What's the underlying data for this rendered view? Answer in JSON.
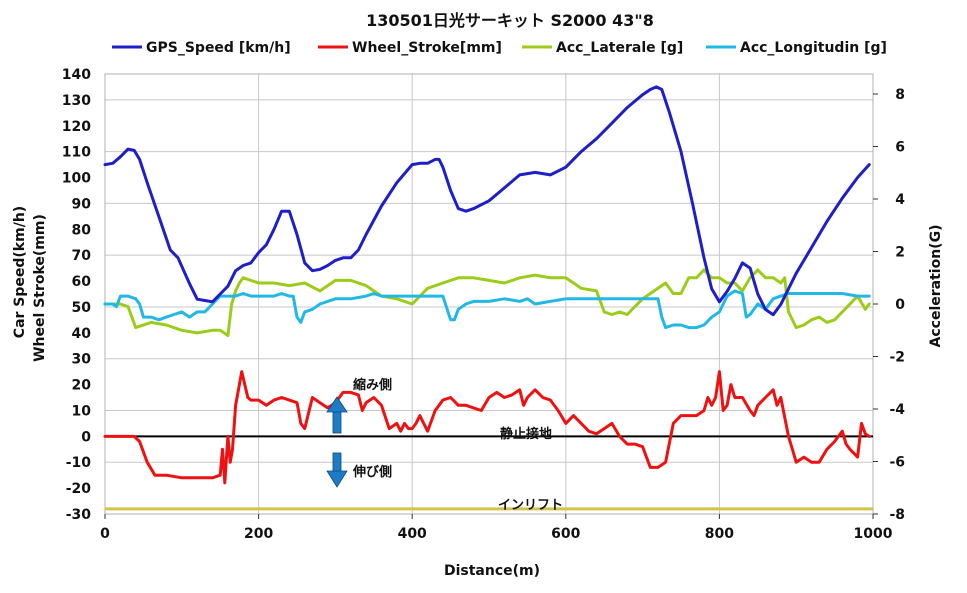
{
  "chart_data": {
    "type": "line",
    "title": "130501日光サーキット S2000 43\"8",
    "xlabel": "Distance(m)",
    "ylabel_left_line1": "Car Speed(km/h)",
    "ylabel_left_line2": "Wheel Stroke(mm)",
    "ylabel_right": "Acceleration(G)",
    "xlim": [
      0,
      1000
    ],
    "ylim_left": [
      -30,
      140
    ],
    "ylim_right": [
      -8,
      8.762
    ],
    "x_ticks": [
      "0",
      "200",
      "400",
      "600",
      "800",
      "1000"
    ],
    "y_ticks_left": [
      "-30",
      "-20",
      "-10",
      "0",
      "10",
      "20",
      "30",
      "40",
      "50",
      "60",
      "70",
      "80",
      "90",
      "100",
      "110",
      "120",
      "130",
      "140"
    ],
    "y_ticks_right": [
      "-8",
      "-6",
      "-4",
      "-2",
      "0",
      "2",
      "4",
      "6",
      "8"
    ],
    "grid": true,
    "legend_position": "top",
    "annotations": {
      "compress": "縮み側",
      "rebound": "伸び側",
      "static": "静止接地",
      "inlift": "インリフト"
    },
    "series": [
      {
        "name": "GPS_Speed [km/h]",
        "axis": "left",
        "color": "#1f1fc8",
        "x": [
          0,
          10,
          20,
          30,
          38,
          45,
          55,
          70,
          85,
          95,
          110,
          120,
          130,
          140,
          150,
          160,
          170,
          180,
          190,
          200,
          210,
          220,
          230,
          240,
          250,
          260,
          270,
          280,
          290,
          300,
          310,
          320,
          330,
          340,
          360,
          380,
          400,
          410,
          420,
          430,
          435,
          440,
          450,
          460,
          470,
          480,
          500,
          520,
          540,
          560,
          580,
          600,
          620,
          640,
          660,
          680,
          700,
          710,
          718,
          725,
          735,
          750,
          765,
          780,
          790,
          800,
          810,
          820,
          830,
          840,
          850,
          860,
          870,
          880,
          890,
          900,
          920,
          940,
          960,
          980,
          995
        ],
        "values": [
          105,
          105.5,
          108,
          111,
          110.5,
          107,
          98,
          85,
          72,
          69,
          59,
          53,
          52.5,
          52,
          55,
          58,
          64,
          66,
          67,
          71,
          74,
          80,
          87,
          87,
          78,
          67,
          64,
          64.5,
          66,
          68,
          69,
          69,
          72,
          78,
          89,
          98,
          105,
          105.5,
          105.5,
          107,
          107,
          104,
          95,
          88,
          87,
          88,
          91,
          96,
          101,
          102,
          101,
          104,
          110,
          115,
          121,
          127,
          132,
          134,
          135,
          134,
          125,
          110,
          90,
          69,
          57,
          52,
          56,
          61,
          67,
          65,
          55,
          49,
          47,
          51,
          57,
          63,
          73,
          83,
          92,
          100,
          105
        ]
      },
      {
        "name": "Wheel_Stroke[mm]",
        "axis": "left",
        "color": "#ee1111",
        "x": [
          0,
          10,
          20,
          30,
          38,
          45,
          55,
          65,
          80,
          100,
          120,
          130,
          140,
          150,
          153,
          156,
          160,
          163,
          166,
          170,
          175,
          178,
          182,
          186,
          190,
          200,
          210,
          220,
          230,
          240,
          250,
          252,
          255,
          260,
          270,
          280,
          290,
          300,
          310,
          320,
          330,
          335,
          340,
          350,
          360,
          370,
          380,
          385,
          390,
          395,
          400,
          405,
          410,
          415,
          420,
          430,
          440,
          450,
          460,
          470,
          480,
          490,
          500,
          510,
          520,
          530,
          540,
          545,
          550,
          560,
          570,
          580,
          590,
          600,
          610,
          620,
          630,
          640,
          650,
          660,
          670,
          680,
          690,
          700,
          710,
          720,
          730,
          740,
          750,
          760,
          770,
          780,
          785,
          790,
          795,
          800,
          805,
          810,
          815,
          820,
          830,
          840,
          845,
          850,
          860,
          870,
          875,
          880,
          890,
          895,
          900,
          910,
          920,
          930,
          940,
          950,
          955,
          960,
          965,
          970,
          980,
          985,
          990,
          995
        ],
        "values": [
          0,
          0,
          0,
          0,
          0,
          -2,
          -10,
          -15,
          -15,
          -16,
          -16,
          -16,
          -16,
          -15,
          -5,
          -18,
          0,
          -10,
          -5,
          12,
          20,
          25,
          20,
          15,
          14,
          14,
          12,
          14,
          15,
          14,
          13,
          10,
          5,
          3,
          15,
          13,
          11,
          13,
          17,
          17,
          16,
          10,
          13,
          15,
          12,
          3,
          5,
          2,
          5,
          3,
          3,
          5,
          8,
          5,
          2,
          10,
          14,
          15,
          12,
          12,
          11,
          10,
          15,
          17,
          15,
          16,
          18,
          12,
          15,
          18,
          15,
          14,
          10,
          5,
          8,
          5,
          2,
          1,
          3,
          5,
          0,
          -3,
          -3,
          -4,
          -12,
          -12,
          -10,
          5,
          8,
          8,
          8,
          10,
          15,
          12,
          15,
          25,
          10,
          12,
          20,
          15,
          15,
          10,
          8,
          12,
          15,
          18,
          12,
          15,
          0,
          -5,
          -10,
          -8,
          -10,
          -10,
          -5,
          -2,
          0,
          2,
          -3,
          -5,
          -8,
          5,
          1,
          0
        ]
      },
      {
        "name": "Acc_Laterale [g]",
        "axis": "right",
        "color": "#9ccc1a",
        "x": [
          0,
          10,
          20,
          30,
          40,
          60,
          80,
          100,
          120,
          140,
          150,
          160,
          165,
          170,
          175,
          180,
          200,
          220,
          240,
          260,
          280,
          300,
          320,
          340,
          360,
          380,
          400,
          420,
          440,
          460,
          480,
          500,
          520,
          540,
          560,
          580,
          600,
          620,
          640,
          650,
          660,
          670,
          680,
          700,
          710,
          720,
          730,
          740,
          750,
          760,
          770,
          780,
          790,
          800,
          810,
          820,
          830,
          840,
          850,
          860,
          870,
          880,
          885,
          890,
          900,
          910,
          920,
          930,
          940,
          950,
          960,
          970,
          980,
          990,
          995
        ],
        "values": [
          0,
          0,
          0,
          -0.1,
          -0.9,
          -0.7,
          -0.8,
          -1.0,
          -1.1,
          -1.0,
          -1.0,
          -1.2,
          0,
          0.5,
          0.8,
          1.0,
          0.8,
          0.8,
          0.7,
          0.8,
          0.5,
          0.9,
          0.9,
          0.7,
          0.3,
          0.2,
          0,
          0.6,
          0.8,
          1.0,
          1.0,
          0.9,
          0.8,
          1.0,
          1.1,
          1.0,
          1.0,
          0.6,
          0.5,
          -0.3,
          -0.4,
          -0.3,
          -0.4,
          0.2,
          0.4,
          0.6,
          0.8,
          0.4,
          0.4,
          1.0,
          1.0,
          1.3,
          1.0,
          1.0,
          0.8,
          0.8,
          0.5,
          1.0,
          1.3,
          1.0,
          1.0,
          0.8,
          1.0,
          -0.3,
          -0.9,
          -0.8,
          -0.6,
          -0.5,
          -0.7,
          -0.6,
          -0.3,
          0,
          0.3,
          -0.2,
          0
        ]
      },
      {
        "name": "Acc_Longitudin [g]",
        "axis": "right",
        "color": "#22b8e6",
        "x": [
          0,
          10,
          15,
          20,
          30,
          40,
          45,
          50,
          55,
          60,
          70,
          80,
          90,
          100,
          110,
          120,
          130,
          140,
          150,
          160,
          170,
          180,
          190,
          200,
          210,
          220,
          230,
          240,
          245,
          250,
          255,
          260,
          270,
          280,
          300,
          320,
          340,
          350,
          360,
          380,
          400,
          420,
          440,
          450,
          455,
          460,
          470,
          480,
          500,
          520,
          540,
          550,
          560,
          580,
          600,
          620,
          640,
          660,
          680,
          700,
          710,
          720,
          725,
          730,
          740,
          750,
          760,
          770,
          780,
          790,
          800,
          810,
          820,
          830,
          835,
          840,
          850,
          860,
          870,
          880,
          890,
          900,
          920,
          940,
          960,
          980,
          995
        ],
        "values": [
          0,
          0,
          -0.1,
          0.3,
          0.3,
          0.2,
          0,
          -0.5,
          -0.5,
          -0.5,
          -0.6,
          -0.5,
          -0.4,
          -0.3,
          -0.5,
          -0.3,
          -0.3,
          0,
          0.3,
          0.3,
          0.3,
          0.4,
          0.3,
          0.3,
          0.3,
          0.3,
          0.4,
          0.3,
          0.3,
          -0.5,
          -0.7,
          -0.3,
          -0.2,
          0,
          0.2,
          0.2,
          0.3,
          0.4,
          0.3,
          0.3,
          0.3,
          0.3,
          0.3,
          -0.6,
          -0.6,
          -0.2,
          0,
          0.1,
          0.1,
          0.2,
          0.1,
          0.2,
          0,
          0.1,
          0.2,
          0.2,
          0.2,
          0.2,
          0.2,
          0.2,
          0.2,
          0.2,
          -0.5,
          -0.9,
          -0.8,
          -0.8,
          -0.9,
          -0.9,
          -0.8,
          -0.5,
          -0.3,
          0.3,
          0.5,
          0.4,
          -0.5,
          -0.4,
          0,
          -0.2,
          0.2,
          0.3,
          0.4,
          0.4,
          0.4,
          0.4,
          0.4,
          0.3,
          0.3
        ]
      }
    ],
    "reference_lines": [
      {
        "label": "静止接地",
        "axis": "left",
        "value": 0,
        "color": "#000000"
      },
      {
        "label": "インリフト",
        "axis": "left",
        "value": -28,
        "color": "#d4c24a"
      }
    ]
  }
}
